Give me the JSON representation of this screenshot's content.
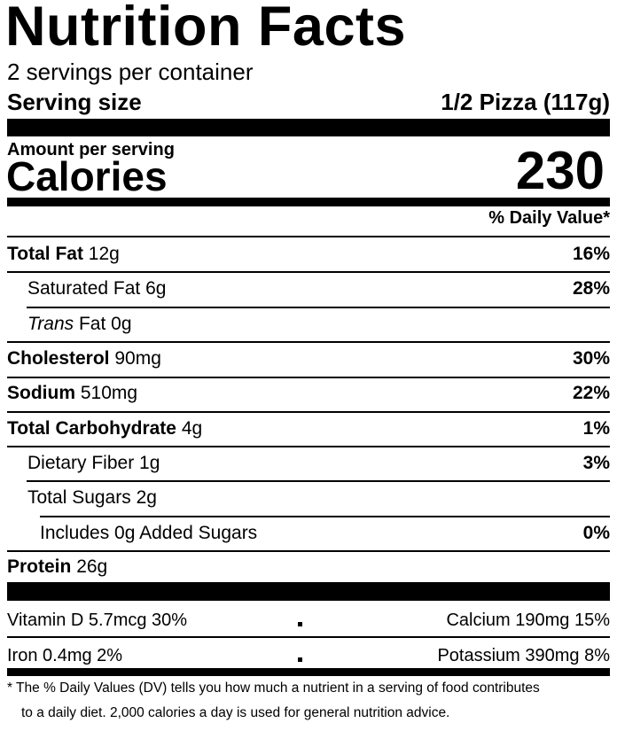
{
  "header": {
    "title": "Nutrition Facts",
    "servings": "2 servings per container",
    "serving_size_label": "Serving size",
    "serving_size": "1/2 Pizza (117g)"
  },
  "calories": {
    "amount_label": "Amount per serving",
    "label": "Calories",
    "value": "230"
  },
  "daily_value_header": "% Daily Value*",
  "nutrients": [
    {
      "name": "Total Fat",
      "amount": "12g",
      "dv": "16%"
    },
    {
      "name": "Saturated Fat",
      "amount": "6g",
      "dv": "28%"
    },
    {
      "name_italic": "Trans",
      "name": "Fat",
      "amount": "0g"
    },
    {
      "name": "Cholesterol",
      "amount": "90mg",
      "dv": "30%"
    },
    {
      "name": "Sodium",
      "amount": "510mg",
      "dv": "22%"
    },
    {
      "name": "Total Carbohydrate",
      "amount": "4g",
      "dv": "1%"
    },
    {
      "name": "Dietary Fiber",
      "amount": "1g",
      "dv": "3%"
    },
    {
      "name": "Total Sugars",
      "amount": "2g"
    },
    {
      "name": "Includes 0g Added Sugars",
      "dv": "0%"
    },
    {
      "name": "Protein",
      "amount": "26g"
    }
  ],
  "vitamins": [
    [
      "Vitamin D 5.7mcg 30%",
      "Calcium 190mg 15%"
    ],
    [
      "Iron 0.4mg 2%",
      "Potassium 390mg 8%"
    ]
  ],
  "footnote": [
    "* The % Daily Values (DV) tells you how much a nutrient in a serving of food contributes",
    "to a daily diet. 2,000 calories a day is used for general nutrition advice."
  ]
}
